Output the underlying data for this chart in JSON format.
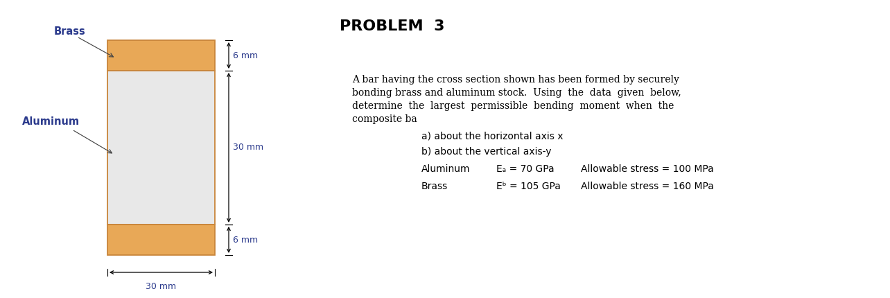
{
  "background_color": "#ffffff",
  "brass_color": "#E8A857",
  "aluminum_color": "#E8E8E8",
  "brass_outline": "#C8853A",
  "label_brass": "Brass",
  "label_aluminum": "Aluminum",
  "dim_top": "6 mm",
  "dim_middle": "30 mm",
  "dim_bottom": "6 mm",
  "dim_width": "30 mm",
  "title_bold": "PROBLEM",
  "title_num": "3",
  "desc_line1": "A bar having the cross section shown has been formed by securely",
  "desc_line2": "bonding brass and aluminum stock.  Using  the  data  given  below,",
  "desc_line3": "determine  the  largest  permissible  bending  moment  when  the",
  "desc_line4": "composite ba",
  "item_a": "a) about the horizontal axis x",
  "item_b": "b) about the vertical axis-y",
  "mat1_name": "Aluminum",
  "mat1_E": "Eₐ = 70 GPa",
  "mat1_stress": "Allowable stress = 100 MPa",
  "mat2_name": "Brass",
  "mat2_E": "Eₕ = 105 GPa",
  "mat2_stress": "Allowable stress = 160 MPa",
  "label_color": "#2B3A8C",
  "dim_color": "#2B3A8C"
}
